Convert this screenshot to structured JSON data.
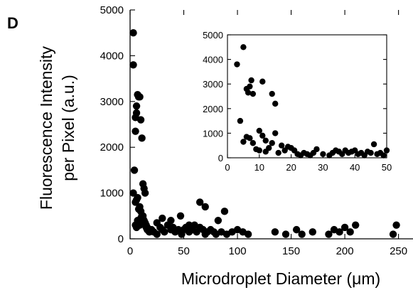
{
  "panel_label": "D",
  "chart_data": [
    {
      "type": "scatter",
      "title": "",
      "xlabel": "Microdroplet Diameter (μm)",
      "ylabel": "Fluorescence Intensity per Pixel (a.u.)",
      "ylabel_lines": [
        "Fluorescence Intensity",
        "per Pixel (a.u.)"
      ],
      "xlim": [
        0,
        250
      ],
      "ylim": [
        0,
        5000
      ],
      "xticks": [
        0,
        50,
        100,
        150,
        200,
        250
      ],
      "xtick_labels": [
        "0",
        "50",
        "100",
        "150",
        "200",
        "250"
      ],
      "yticks": [
        0,
        1000,
        2000,
        3000,
        4000,
        5000
      ],
      "ytick_labels": [
        "0",
        "1000",
        "2000",
        "3000",
        "4000",
        "5000"
      ],
      "grid": false,
      "series": [
        {
          "x": [
            3,
            3,
            4,
            5,
            5,
            6,
            6,
            7,
            8,
            9,
            10,
            11,
            12,
            13,
            14,
            3,
            5,
            6,
            7,
            8,
            9,
            10,
            11,
            12,
            13,
            14,
            15,
            16,
            5,
            6,
            7,
            8,
            9,
            10,
            11,
            12,
            13,
            14,
            15,
            16,
            17,
            18,
            20,
            22,
            25,
            28,
            30,
            32,
            35,
            38,
            40,
            42,
            45,
            48,
            50,
            52,
            55,
            58,
            60,
            62,
            65,
            68,
            70,
            72,
            75,
            78,
            80,
            85,
            90,
            95,
            100,
            105,
            110,
            65,
            70,
            82,
            88,
            47,
            55,
            38,
            25,
            30,
            135,
            145,
            155,
            160,
            170,
            185,
            190,
            195,
            200,
            205,
            210,
            245,
            248
          ],
          "y": [
            4500,
            3800,
            1500,
            2650,
            2350,
            2900,
            2750,
            3150,
            3100,
            3100,
            2600,
            2200,
            1200,
            1100,
            1000,
            1000,
            800,
            850,
            900,
            650,
            700,
            600,
            500,
            450,
            400,
            350,
            300,
            250,
            300,
            250,
            400,
            350,
            300,
            450,
            400,
            500,
            350,
            300,
            250,
            200,
            180,
            150,
            200,
            150,
            100,
            250,
            200,
            150,
            300,
            200,
            250,
            150,
            200,
            100,
            200,
            250,
            150,
            200,
            300,
            150,
            250,
            200,
            100,
            150,
            200,
            150,
            100,
            150,
            100,
            150,
            200,
            150,
            100,
            800,
            700,
            400,
            600,
            500,
            300,
            400,
            350,
            450,
            150,
            100,
            200,
            100,
            150,
            100,
            200,
            150,
            250,
            150,
            300,
            100,
            300
          ]
        }
      ]
    },
    {
      "type": "scatter",
      "title": "",
      "xlabel": "",
      "ylabel": "",
      "xlim": [
        0,
        50
      ],
      "ylim": [
        0,
        5000
      ],
      "xticks": [
        0,
        10,
        20,
        30,
        40,
        50
      ],
      "xtick_labels": [
        "0",
        "10",
        "20",
        "30",
        "40",
        "50"
      ],
      "yticks": [
        0,
        1000,
        2000,
        3000,
        4000,
        5000
      ],
      "ytick_labels": [
        "0",
        "1000",
        "2000",
        "3000",
        "4000",
        "5000"
      ],
      "grid": false,
      "placement": "inset, upper right of main plot",
      "series": [
        {
          "x": [
            3,
            5,
            4,
            6,
            6.5,
            7,
            7.5,
            8,
            11,
            14,
            15,
            6,
            7,
            10,
            11,
            12,
            14,
            15,
            17,
            18,
            19,
            20,
            5,
            8,
            9,
            10,
            12,
            13,
            16,
            21,
            22,
            23,
            24,
            25,
            26,
            27,
            28,
            30,
            32,
            33,
            34,
            35,
            36,
            37,
            38,
            39,
            40,
            41,
            42,
            43,
            44,
            45,
            46,
            47,
            48,
            49,
            50
          ],
          "y": [
            3800,
            4500,
            1500,
            2800,
            2650,
            2900,
            3150,
            2600,
            3100,
            2600,
            2200,
            850,
            800,
            1100,
            900,
            700,
            600,
            1000,
            500,
            300,
            450,
            400,
            650,
            600,
            350,
            300,
            250,
            400,
            200,
            300,
            150,
            100,
            200,
            150,
            100,
            200,
            350,
            150,
            100,
            200,
            300,
            250,
            150,
            300,
            200,
            250,
            300,
            150,
            200,
            100,
            250,
            200,
            550,
            150,
            200,
            100,
            300
          ]
        }
      ]
    }
  ]
}
